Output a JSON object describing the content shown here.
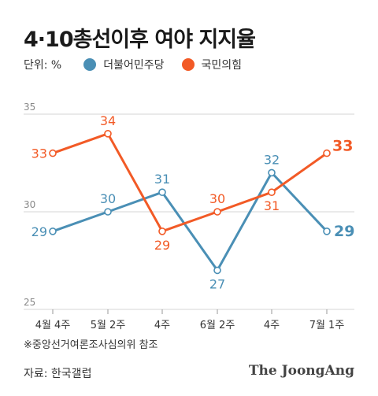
{
  "title": "4·10총선이후 여야 지지율",
  "legend": {
    "unit": "단위: %",
    "items": [
      {
        "label": "더불어민주당",
        "color": "#4a8fb5"
      },
      {
        "label": "국민의힘",
        "color": "#f25a26"
      }
    ]
  },
  "note": "※중앙선거여론조사심의위 참조",
  "source": "자료: 한국갤럽",
  "brand": "The JoongAng",
  "chart_data": {
    "type": "line",
    "categories": [
      "4월 4주",
      "5월 2주",
      "4주",
      "6월 2주",
      "4주",
      "7월 1주"
    ],
    "ylim": [
      25,
      35
    ],
    "yticks": [
      25,
      30,
      35
    ],
    "grid": true,
    "series": [
      {
        "name": "더불어민주당",
        "color": "#4a8fb5",
        "values": [
          29,
          30,
          31,
          27,
          32,
          29
        ]
      },
      {
        "name": "국민의힘",
        "color": "#f25a26",
        "values": [
          33,
          34,
          29,
          30,
          31,
          33
        ]
      }
    ]
  }
}
